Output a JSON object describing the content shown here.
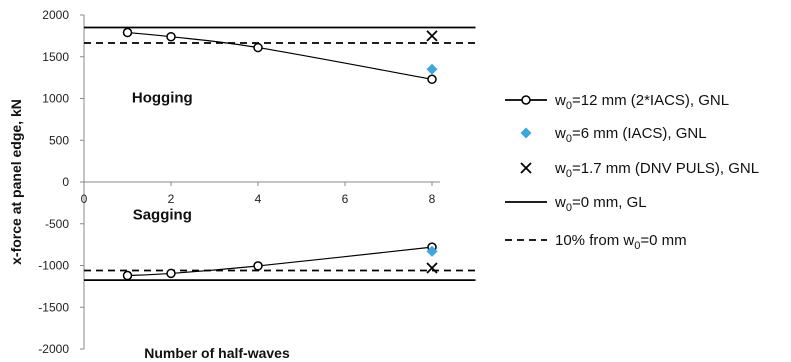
{
  "chart_data": {
    "type": "line",
    "xlabel": "Number of half-waves",
    "ylabel": "x-force at panel edge, kN",
    "xlim": [
      0,
      9
    ],
    "ylim": [
      -2000,
      2000
    ],
    "xticks": [
      0,
      2,
      4,
      6,
      8
    ],
    "yticks": [
      -2000,
      -1500,
      -1000,
      -500,
      0,
      500,
      1000,
      1500,
      2000
    ],
    "grid": false,
    "legend_position": "right",
    "annotations": [
      {
        "text": "Hogging",
        "x": 1.8,
        "y": 950
      },
      {
        "text": "Sagging",
        "x": 1.8,
        "y": -450
      }
    ],
    "series": [
      {
        "name_prefix": "w",
        "name_sub": "0",
        "name_suffix": "=12 mm (2*IACS), GNL",
        "marker": "circle-open",
        "line": "solid",
        "color": "#000000",
        "segments": [
          {
            "x": [
              1,
              2,
              4,
              8
            ],
            "y": [
              1790,
              1740,
              1610,
              1230
            ]
          },
          {
            "x": [
              1,
              2,
              4,
              8
            ],
            "y": [
              -1120,
              -1095,
              -1005,
              -780
            ]
          }
        ]
      },
      {
        "name_prefix": "w",
        "name_sub": "0",
        "name_suffix": "=6 mm (IACS), GNL",
        "marker": "diamond-filled",
        "line": "none",
        "color": "#3ea6dc",
        "segments": [
          {
            "x": [
              8
            ],
            "y": [
              1350
            ]
          },
          {
            "x": [
              8
            ],
            "y": [
              -830
            ]
          }
        ]
      },
      {
        "name_prefix": "w",
        "name_sub": "0",
        "name_suffix": "=1.7 mm (DNV PULS), GNL",
        "marker": "x",
        "line": "none",
        "color": "#000000",
        "segments": [
          {
            "x": [
              8
            ],
            "y": [
              1750
            ]
          },
          {
            "x": [
              8
            ],
            "y": [
              -1030
            ]
          }
        ]
      },
      {
        "name_prefix": "w",
        "name_sub": "0",
        "name_suffix": "=0 mm, GL",
        "marker": "none",
        "line": "solid",
        "color": "#000000",
        "segments": [
          {
            "x": [
              0,
              9
            ],
            "y": [
              1850,
              1850
            ]
          },
          {
            "x": [
              0,
              9
            ],
            "y": [
              -1175,
              -1175
            ]
          }
        ]
      },
      {
        "name_prefix": "10% from w",
        "name_sub": "0",
        "name_suffix": "=0 mm",
        "marker": "none",
        "line": "dashed",
        "color": "#000000",
        "segments": [
          {
            "x": [
              0,
              9
            ],
            "y": [
              1665,
              1665
            ]
          },
          {
            "x": [
              0,
              9
            ],
            "y": [
              -1060,
              -1060
            ]
          }
        ]
      }
    ]
  }
}
